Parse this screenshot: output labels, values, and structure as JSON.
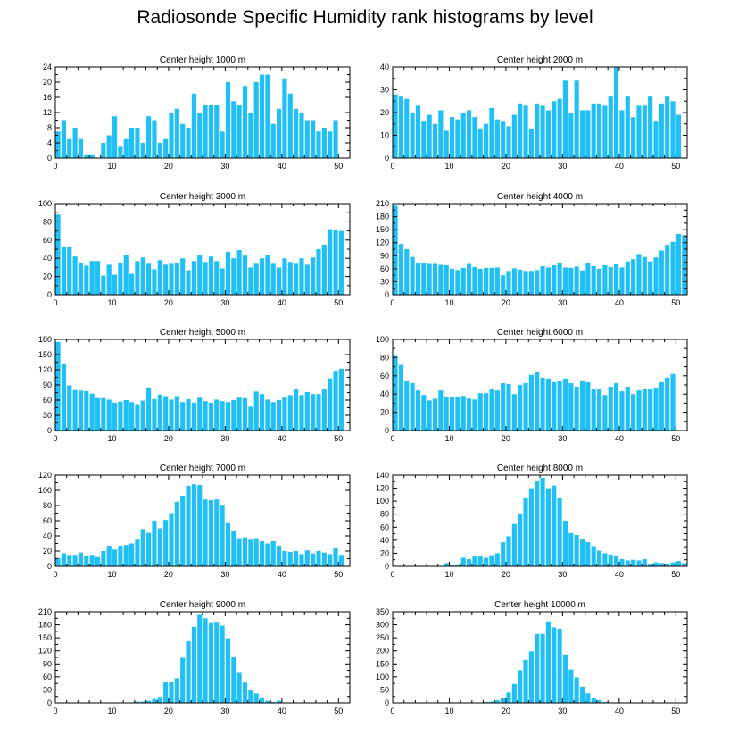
{
  "page": {
    "title": "Radiosonde Specific Humidity rank histograms by level"
  },
  "style": {
    "bar_color": "#1EC0F5",
    "axis_color": "#000000",
    "background": "#FFFFFF"
  },
  "chart_data": [
    {
      "type": "bar",
      "title": "Center height 1000 m",
      "xlim": [
        0,
        52
      ],
      "xticks": [
        0,
        10,
        20,
        30,
        40,
        50
      ],
      "ylim": [
        0,
        24
      ],
      "yticks": [
        0,
        4,
        8,
        12,
        16,
        20,
        24
      ],
      "values": [
        7,
        10,
        5,
        8,
        5,
        1,
        1,
        0,
        4,
        6,
        11,
        3,
        5,
        8,
        8,
        4,
        11,
        10,
        4,
        5,
        12,
        13,
        9,
        8,
        17,
        12,
        14,
        14,
        14,
        7,
        20,
        15,
        14,
        19,
        12,
        20,
        22,
        22,
        9,
        13,
        21,
        17,
        13,
        12,
        10,
        10,
        7,
        8,
        7,
        10
      ]
    },
    {
      "type": "bar",
      "title": "Center height 2000 m",
      "xlim": [
        0,
        52
      ],
      "xticks": [
        0,
        10,
        20,
        30,
        40,
        50
      ],
      "ylim": [
        0,
        40
      ],
      "yticks": [
        0,
        10,
        20,
        30,
        40
      ],
      "values": [
        28,
        27,
        26,
        20,
        23,
        16,
        19,
        15,
        21,
        12,
        18,
        17,
        20,
        21,
        18,
        13,
        15,
        22,
        17,
        16,
        14,
        19,
        24,
        23,
        13,
        24,
        23,
        21,
        25,
        26,
        34,
        20,
        34,
        21,
        21,
        24,
        24,
        23,
        27,
        40,
        21,
        27,
        18,
        23,
        23,
        27,
        16,
        24,
        27,
        25,
        19
      ]
    },
    {
      "type": "bar",
      "title": "Center height 3000 m",
      "xlim": [
        0,
        52
      ],
      "xticks": [
        0,
        10,
        20,
        30,
        40,
        50
      ],
      "ylim": [
        0,
        100
      ],
      "yticks": [
        0,
        20,
        40,
        60,
        80,
        100
      ],
      "values": [
        88,
        53,
        53,
        42,
        35,
        32,
        37,
        37,
        21,
        33,
        22,
        35,
        44,
        23,
        37,
        41,
        34,
        28,
        38,
        33,
        34,
        35,
        40,
        27,
        37,
        44,
        36,
        42,
        37,
        29,
        47,
        40,
        49,
        43,
        30,
        34,
        40,
        44,
        34,
        30,
        40,
        36,
        34,
        40,
        33,
        41,
        50,
        55,
        72,
        71,
        70
      ]
    },
    {
      "type": "bar",
      "title": "Center height 4000 m",
      "xlim": [
        0,
        52
      ],
      "xticks": [
        0,
        10,
        20,
        30,
        40,
        50
      ],
      "ylim": [
        0,
        210
      ],
      "yticks": [
        0,
        30,
        60,
        90,
        120,
        150,
        180,
        210
      ],
      "values": [
        205,
        117,
        105,
        87,
        73,
        73,
        71,
        71,
        69,
        68,
        60,
        57,
        62,
        71,
        64,
        60,
        62,
        62,
        63,
        45,
        55,
        61,
        58,
        55,
        55,
        57,
        66,
        63,
        68,
        73,
        63,
        62,
        65,
        56,
        72,
        66,
        60,
        68,
        64,
        70,
        63,
        77,
        82,
        94,
        87,
        77,
        86,
        102,
        115,
        122,
        140,
        137
      ]
    },
    {
      "type": "bar",
      "title": "Center height 5000 m",
      "xlim": [
        0,
        52
      ],
      "xticks": [
        0,
        10,
        20,
        30,
        40,
        50
      ],
      "ylim": [
        0,
        180
      ],
      "yticks": [
        0,
        30,
        60,
        90,
        120,
        150,
        180
      ],
      "values": [
        175,
        131,
        89,
        80,
        79,
        78,
        73,
        64,
        64,
        61,
        55,
        57,
        60,
        56,
        52,
        59,
        85,
        62,
        71,
        68,
        61,
        68,
        56,
        62,
        55,
        65,
        58,
        55,
        61,
        58,
        56,
        60,
        65,
        64,
        47,
        77,
        72,
        61,
        56,
        60,
        65,
        70,
        82,
        70,
        76,
        72,
        72,
        83,
        103,
        118,
        122
      ]
    },
    {
      "type": "bar",
      "title": "Center height 6000 m",
      "xlim": [
        0,
        52
      ],
      "xticks": [
        0,
        10,
        20,
        30,
        40,
        50
      ],
      "ylim": [
        0,
        100
      ],
      "yticks": [
        0,
        20,
        40,
        60,
        80,
        100
      ],
      "values": [
        82,
        72,
        55,
        52,
        44,
        39,
        33,
        35,
        44,
        37,
        37,
        37,
        38,
        35,
        34,
        41,
        41,
        45,
        44,
        52,
        51,
        40,
        50,
        52,
        61,
        64,
        58,
        57,
        53,
        54,
        57,
        52,
        48,
        55,
        53,
        46,
        45,
        39,
        48,
        52,
        43,
        48,
        40,
        44,
        46,
        45,
        47,
        53,
        58,
        62
      ]
    },
    {
      "type": "bar",
      "title": "Center height 7000 m",
      "xlim": [
        0,
        52
      ],
      "xticks": [
        0,
        10,
        20,
        30,
        40,
        50
      ],
      "ylim": [
        0,
        120
      ],
      "yticks": [
        0,
        20,
        40,
        60,
        80,
        100,
        120
      ],
      "values": [
        11,
        17,
        15,
        15,
        18,
        13,
        15,
        12,
        20,
        27,
        22,
        27,
        28,
        30,
        35,
        49,
        44,
        60,
        50,
        61,
        70,
        85,
        93,
        106,
        108,
        107,
        88,
        87,
        88,
        81,
        58,
        47,
        37,
        38,
        35,
        37,
        33,
        30,
        33,
        27,
        20,
        19,
        20,
        16,
        21,
        17,
        20,
        18,
        16,
        24,
        15
      ]
    },
    {
      "type": "bar",
      "title": "Center height 8000 m",
      "xlim": [
        0,
        52
      ],
      "xticks": [
        0,
        10,
        20,
        30,
        40,
        50
      ],
      "ylim": [
        0,
        140
      ],
      "yticks": [
        0,
        20,
        40,
        60,
        80,
        100,
        120,
        140
      ],
      "values": [
        0,
        0,
        0,
        0,
        0,
        0,
        0,
        0,
        0,
        5,
        2,
        3,
        13,
        11,
        15,
        15,
        13,
        17,
        20,
        37,
        46,
        65,
        81,
        105,
        120,
        131,
        136,
        120,
        124,
        105,
        70,
        51,
        48,
        41,
        37,
        31,
        24,
        20,
        18,
        15,
        11,
        9,
        10,
        9,
        11,
        4,
        6,
        5,
        4,
        6,
        8,
        5
      ]
    },
    {
      "type": "bar",
      "title": "Center height 9000 m",
      "xlim": [
        0,
        52
      ],
      "xticks": [
        0,
        10,
        20,
        30,
        40,
        50
      ],
      "ylim": [
        0,
        210
      ],
      "yticks": [
        0,
        30,
        60,
        90,
        120,
        150,
        180,
        210
      ],
      "values": [
        0,
        0,
        0,
        0,
        0,
        0,
        0,
        0,
        0,
        0,
        0,
        0,
        0,
        0,
        3,
        3,
        5,
        9,
        14,
        48,
        49,
        57,
        104,
        142,
        175,
        205,
        195,
        186,
        187,
        178,
        149,
        107,
        71,
        47,
        29,
        22,
        12,
        5,
        2,
        5,
        1,
        0,
        0,
        0,
        0,
        0,
        0,
        0,
        0,
        0,
        0,
        0
      ]
    },
    {
      "type": "bar",
      "title": "Center height 10000 m",
      "xlim": [
        0,
        52
      ],
      "xticks": [
        0,
        10,
        20,
        30,
        40,
        50
      ],
      "ylim": [
        0,
        350
      ],
      "yticks": [
        0,
        50,
        100,
        150,
        200,
        250,
        300,
        350
      ],
      "values": [
        0,
        0,
        0,
        0,
        0,
        0,
        0,
        0,
        0,
        0,
        0,
        0,
        0,
        0,
        0,
        0,
        3,
        5,
        10,
        20,
        40,
        73,
        126,
        165,
        198,
        265,
        265,
        313,
        290,
        285,
        186,
        128,
        98,
        62,
        37,
        20,
        11,
        3,
        0,
        0,
        0,
        0,
        0,
        0,
        0,
        0,
        0,
        0,
        0,
        0,
        0,
        0
      ]
    }
  ]
}
